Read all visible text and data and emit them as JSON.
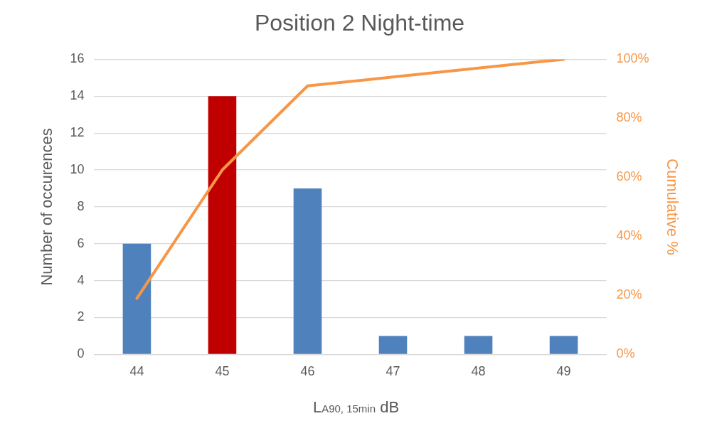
{
  "chart_data": {
    "type": "bar",
    "title": "Position 2 Night-time",
    "xlabel": "L$_{A90, 15min}$ dB",
    "ylabel": "Number of occurences",
    "y2label": "Cumulative %",
    "categories": [
      "44",
      "45",
      "46",
      "47",
      "48",
      "49"
    ],
    "series": [
      {
        "colors": [
          "#4f81bd",
          "#c00000",
          "#4f81bd",
          "#4f81bd",
          "#4f81bd",
          "#4f81bd"
        ],
        "values": [
          6,
          14,
          9,
          1,
          1,
          1
        ]
      },
      {
        "type": "line",
        "axis": "y2",
        "color": "#f79646",
        "values": [
          19,
          62.5,
          91,
          94,
          97,
          100
        ]
      }
    ],
    "ylim": [
      0,
      16
    ],
    "yticks": [
      0,
      2,
      4,
      6,
      8,
      10,
      12,
      14,
      16
    ],
    "y2lim": [
      0,
      100
    ],
    "y2ticks": [
      {
        "value": 0,
        "label": "0%"
      },
      {
        "value": 20,
        "label": "20%"
      },
      {
        "value": 40,
        "label": "40%"
      },
      {
        "value": 60,
        "label": "60%"
      },
      {
        "value": 80,
        "label": "80%"
      },
      {
        "value": 100,
        "label": "100%"
      }
    ],
    "grid": "y",
    "legend": false,
    "marker": "none"
  }
}
